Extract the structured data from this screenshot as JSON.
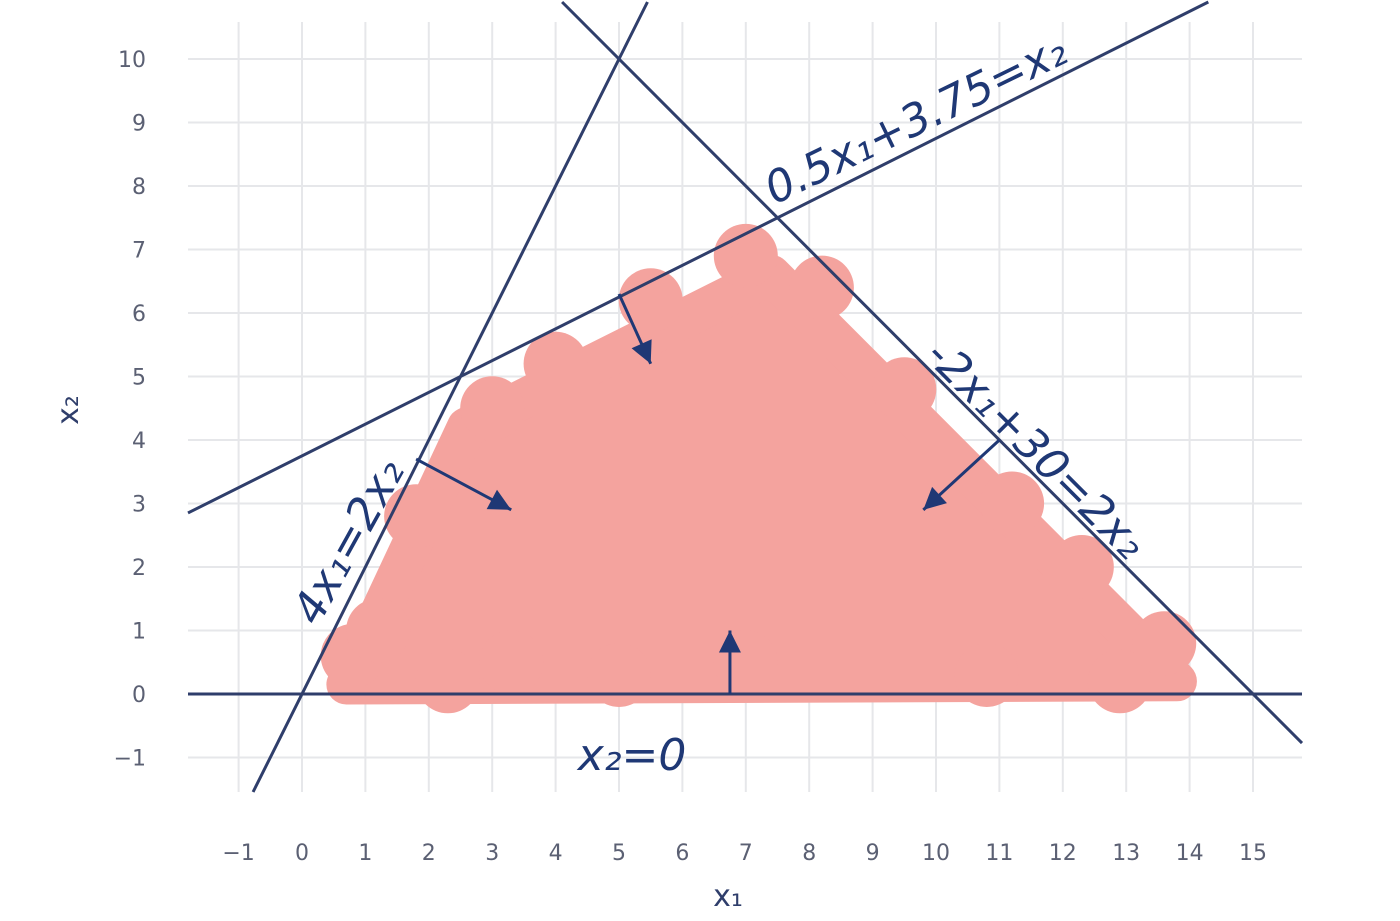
{
  "chart_data": {
    "type": "line",
    "title": "",
    "xlabel": "x₁",
    "ylabel": "x₂",
    "xlim": [
      -1.8,
      15.8
    ],
    "ylim": [
      -1.5,
      10.5
    ],
    "xticks": [
      -1,
      0,
      1,
      2,
      3,
      4,
      5,
      6,
      7,
      8,
      9,
      10,
      11,
      12,
      13,
      14,
      15
    ],
    "yticks": [
      -1,
      0,
      1,
      2,
      3,
      4,
      5,
      6,
      7,
      8,
      9,
      10
    ],
    "grid": true,
    "colors": {
      "line": "#2f3e6b",
      "region": "#f4a39e",
      "annotation": "#1f3875",
      "grid": "#e6e7ea"
    },
    "constraints": [
      {
        "label": "4x₁=2x₂",
        "slope": 2,
        "intercept": 0
      },
      {
        "label": "0.5x₁+3.75=x₂",
        "slope": 0.5,
        "intercept": 3.75
      },
      {
        "label": "-2x₁+30=2x₂",
        "slope": -1,
        "intercept": 15
      },
      {
        "label": "x₂=0",
        "slope": 0,
        "intercept": 0
      }
    ],
    "feasible_region": [
      [
        0,
        0
      ],
      [
        2.5,
        5
      ],
      [
        7.5,
        7.5
      ],
      [
        15,
        0
      ]
    ]
  }
}
